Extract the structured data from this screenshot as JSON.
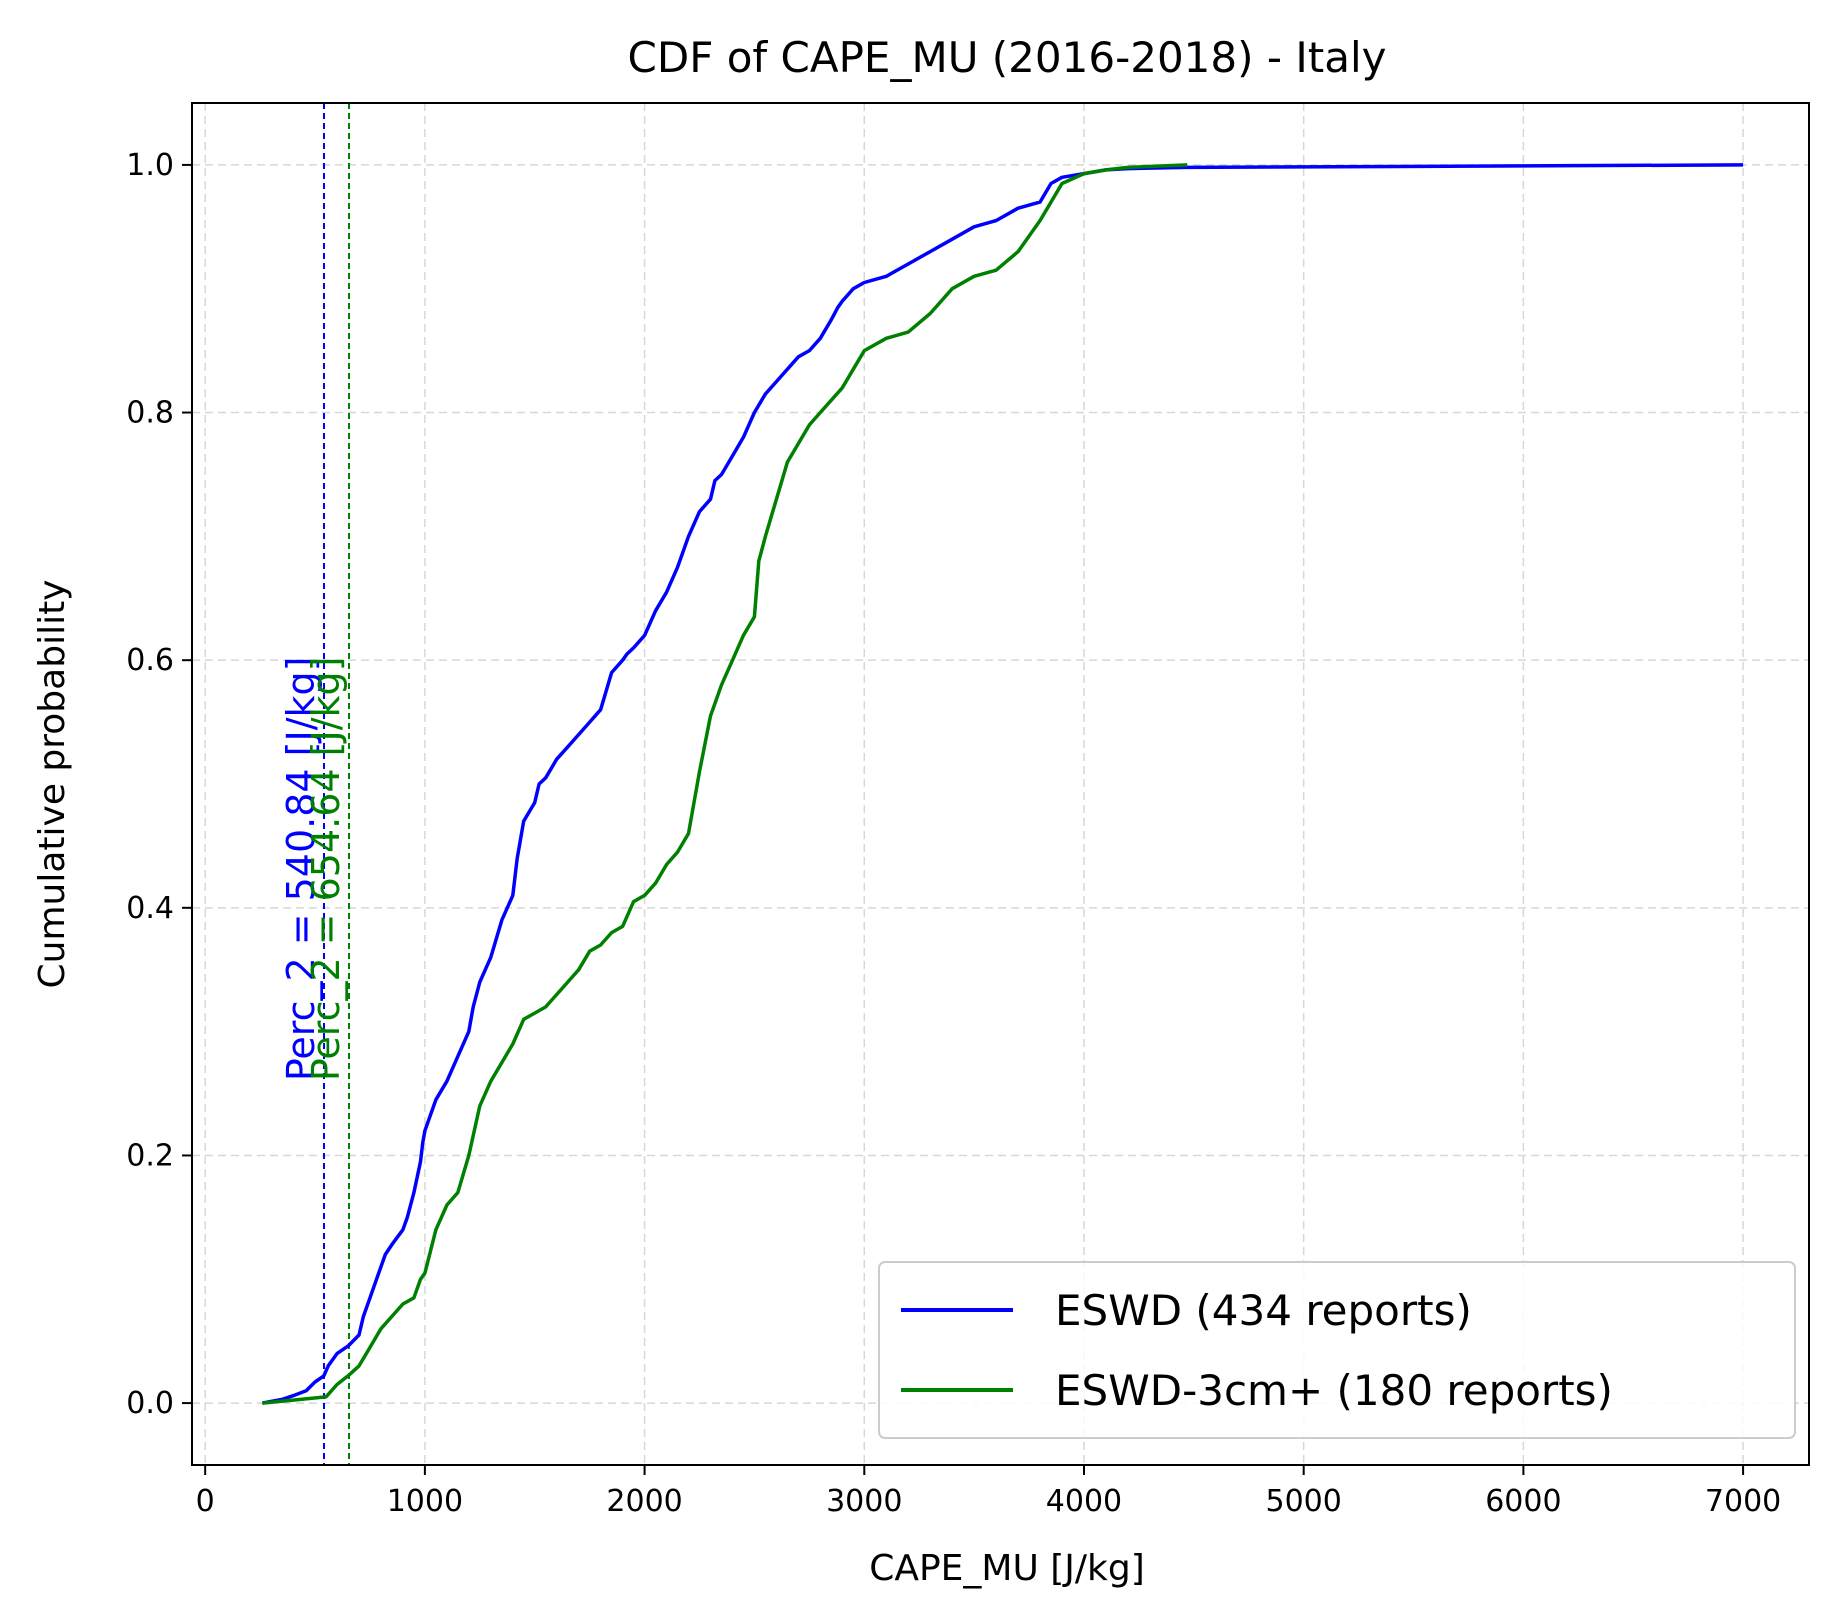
{
  "chart_data": {
    "type": "line",
    "title": "CDF of CAPE_MU (2016-2018) - Italy",
    "xlabel": "CAPE_MU [J/kg]",
    "ylabel": "Cumulative probability",
    "xlim": [
      -60,
      7300
    ],
    "ylim": [
      -0.05,
      1.05
    ],
    "xticks": [
      0,
      1000,
      2000,
      3000,
      4000,
      5000,
      6000,
      7000
    ],
    "xtick_labels": [
      "0",
      "1000",
      "2000",
      "3000",
      "4000",
      "5000",
      "6000",
      "7000"
    ],
    "yticks": [
      0.0,
      0.2,
      0.4,
      0.6,
      0.8,
      1.0
    ],
    "ytick_labels": [
      "0.0",
      "0.2",
      "0.4",
      "0.6",
      "0.8",
      "1.0"
    ],
    "grid": true,
    "legend_position": "lower-right",
    "series": [
      {
        "name": "ESWD (434 reports)",
        "color": "#0000ff",
        "x": [
          260,
          350,
          400,
          460,
          500,
          540,
          560,
          600,
          650,
          700,
          720,
          750,
          780,
          800,
          820,
          850,
          900,
          920,
          950,
          980,
          990,
          1000,
          1050,
          1100,
          1150,
          1200,
          1220,
          1250,
          1300,
          1350,
          1400,
          1420,
          1450,
          1500,
          1520,
          1550,
          1600,
          1650,
          1700,
          1750,
          1800,
          1850,
          1900,
          1920,
          1950,
          2000,
          2050,
          2100,
          2150,
          2200,
          2250,
          2300,
          2320,
          2350,
          2400,
          2450,
          2500,
          2550,
          2600,
          2650,
          2700,
          2750,
          2800,
          2850,
          2880,
          2900,
          2950,
          3000,
          3100,
          3200,
          3300,
          3400,
          3500,
          3600,
          3700,
          3800,
          3850,
          3900,
          4000,
          4100,
          4200,
          4470,
          7000
        ],
        "y": [
          0.0,
          0.003,
          0.006,
          0.01,
          0.017,
          0.022,
          0.03,
          0.04,
          0.046,
          0.055,
          0.07,
          0.085,
          0.1,
          0.11,
          0.12,
          0.128,
          0.14,
          0.15,
          0.17,
          0.195,
          0.21,
          0.22,
          0.245,
          0.26,
          0.28,
          0.3,
          0.32,
          0.34,
          0.36,
          0.39,
          0.41,
          0.44,
          0.47,
          0.485,
          0.5,
          0.505,
          0.52,
          0.53,
          0.54,
          0.55,
          0.56,
          0.59,
          0.6,
          0.605,
          0.61,
          0.62,
          0.64,
          0.655,
          0.675,
          0.7,
          0.72,
          0.73,
          0.745,
          0.75,
          0.765,
          0.78,
          0.8,
          0.815,
          0.825,
          0.835,
          0.845,
          0.85,
          0.86,
          0.875,
          0.885,
          0.89,
          0.9,
          0.905,
          0.91,
          0.92,
          0.93,
          0.94,
          0.95,
          0.955,
          0.965,
          0.97,
          0.985,
          0.99,
          0.993,
          0.996,
          0.997,
          0.998,
          1.0
        ]
      },
      {
        "name": "ESWD-3cm+ (180 reports)",
        "color": "#008000",
        "x": [
          260,
          550,
          600,
          650,
          700,
          750,
          800,
          850,
          900,
          950,
          980,
          1000,
          1050,
          1100,
          1150,
          1200,
          1250,
          1300,
          1350,
          1400,
          1450,
          1500,
          1550,
          1600,
          1650,
          1700,
          1750,
          1800,
          1850,
          1900,
          1950,
          2000,
          2050,
          2100,
          2150,
          2200,
          2250,
          2300,
          2350,
          2400,
          2450,
          2500,
          2520,
          2550,
          2600,
          2650,
          2700,
          2750,
          2800,
          2850,
          2900,
          2950,
          3000,
          3100,
          3200,
          3300,
          3400,
          3500,
          3600,
          3700,
          3800,
          3850,
          3900,
          4000,
          4100,
          4200,
          4470
        ],
        "y": [
          0.0,
          0.005,
          0.015,
          0.022,
          0.03,
          0.045,
          0.06,
          0.07,
          0.08,
          0.085,
          0.1,
          0.105,
          0.14,
          0.16,
          0.17,
          0.2,
          0.24,
          0.26,
          0.275,
          0.29,
          0.31,
          0.315,
          0.32,
          0.33,
          0.34,
          0.35,
          0.365,
          0.37,
          0.38,
          0.385,
          0.405,
          0.41,
          0.42,
          0.435,
          0.445,
          0.46,
          0.51,
          0.555,
          0.58,
          0.6,
          0.62,
          0.635,
          0.68,
          0.7,
          0.73,
          0.76,
          0.775,
          0.79,
          0.8,
          0.81,
          0.82,
          0.835,
          0.85,
          0.86,
          0.865,
          0.88,
          0.9,
          0.91,
          0.915,
          0.93,
          0.955,
          0.97,
          0.985,
          0.993,
          0.996,
          0.998,
          1.0
        ]
      }
    ],
    "annotations": [
      {
        "x": 540.84,
        "text": "Perc_2 = 540.84 [J/kg]",
        "color": "#0000ff"
      },
      {
        "x": 654.64,
        "text": "Perc_2 = 654.64 [J/kg]",
        "color": "#008000"
      }
    ]
  }
}
